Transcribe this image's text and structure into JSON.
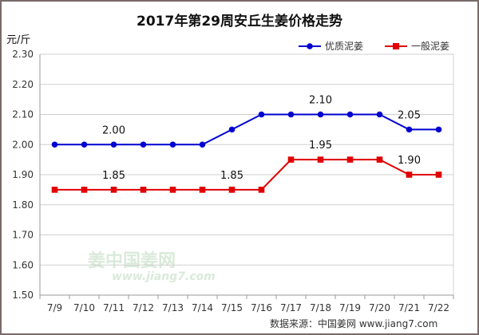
{
  "chart_data": {
    "type": "line",
    "title": "2017年第29周安丘生姜价格走势",
    "ylabel": "元/斤",
    "xlabel": "",
    "categories": [
      "7/9",
      "7/10",
      "7/11",
      "7/12",
      "7/13",
      "7/14",
      "7/15",
      "7/16",
      "7/17",
      "7/18",
      "7/19",
      "7/20",
      "7/21",
      "7/22"
    ],
    "ylim": [
      1.5,
      2.3
    ],
    "yticks": [
      "1.50",
      "1.60",
      "1.70",
      "1.80",
      "1.90",
      "2.00",
      "2.10",
      "2.20",
      "2.30"
    ],
    "grid": true,
    "legend_position": "top-right",
    "series": [
      {
        "name": "优质泥姜",
        "color": "#0000d0",
        "marker": "circle",
        "values": [
          2.0,
          2.0,
          2.0,
          2.0,
          2.0,
          2.0,
          2.05,
          2.1,
          2.1,
          2.1,
          2.1,
          2.1,
          2.05,
          2.05
        ]
      },
      {
        "name": "一般泥姜",
        "color": "#e00000",
        "marker": "square",
        "values": [
          1.85,
          1.85,
          1.85,
          1.85,
          1.85,
          1.85,
          1.85,
          1.85,
          1.95,
          1.95,
          1.95,
          1.95,
          1.9,
          1.9
        ]
      }
    ],
    "annotations": [
      {
        "text": "2.00",
        "x": "7/11",
        "y": 2.0
      },
      {
        "text": "2.10",
        "x": "7/18",
        "y": 2.1
      },
      {
        "text": "2.05",
        "x": "7/21",
        "y": 2.05
      },
      {
        "text": "1.85",
        "x": "7/11",
        "y": 1.85
      },
      {
        "text": "1.85",
        "x": "7/15",
        "y": 1.85
      },
      {
        "text": "1.95",
        "x": "7/18",
        "y": 1.95
      },
      {
        "text": "1.90",
        "x": "7/21",
        "y": 1.9
      }
    ]
  },
  "watermark": {
    "main": "姜中国姜网",
    "sub": "www.jiang7.com"
  },
  "source": "数据来源：中国姜网 www.jiang7.com"
}
